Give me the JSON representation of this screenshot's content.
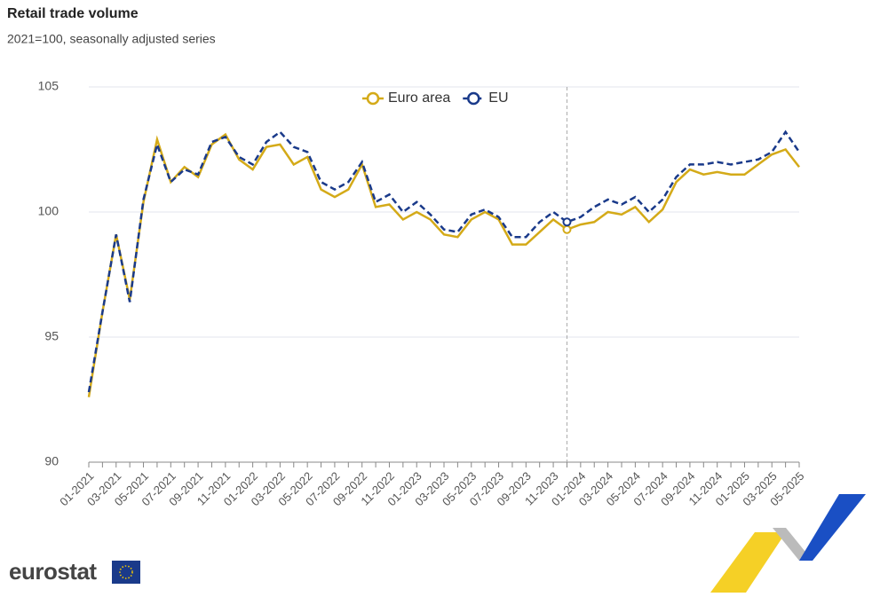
{
  "chart_data": {
    "type": "line",
    "title": "Retail trade volume",
    "subtitle": "2021=100, seasonally adjusted series",
    "source": "eurostat",
    "categories": [
      "01-2021",
      null,
      "03-2021",
      null,
      "05-2021",
      null,
      "07-2021",
      null,
      "09-2021",
      null,
      "11-2021",
      null,
      "01-2022",
      null,
      "03-2022",
      null,
      "05-2022",
      null,
      "07-2022",
      null,
      "09-2022",
      null,
      "11-2022",
      null,
      "01-2023",
      null,
      "03-2023",
      null,
      "05-2023",
      null,
      "07-2023",
      null,
      "09-2023",
      null,
      "11-2023",
      null,
      "01-2024",
      null,
      "03-2024",
      null,
      "05-2024",
      null,
      "07-2024",
      null,
      "09-2024",
      null,
      "11-2024",
      null,
      "01-2025",
      null,
      "03-2025",
      null,
      "05-2025"
    ],
    "series": [
      {
        "name": "Euro area",
        "color": "#d4aa18",
        "dashed": false,
        "values": [
          92.6,
          96.0,
          99.1,
          96.5,
          100.4,
          102.9,
          101.2,
          101.8,
          101.4,
          102.7,
          103.1,
          102.1,
          101.7,
          102.6,
          102.7,
          101.9,
          102.2,
          100.9,
          100.6,
          100.9,
          101.9,
          100.2,
          100.3,
          99.7,
          100.0,
          99.7,
          99.1,
          99.0,
          99.7,
          100.0,
          99.7,
          98.7,
          98.7,
          99.2,
          99.7,
          99.3,
          99.5,
          99.6,
          100.0,
          99.9,
          100.2,
          99.6,
          100.1,
          101.2,
          101.7,
          101.5,
          101.6,
          101.5,
          101.5,
          101.9,
          102.3,
          102.5,
          101.8
        ]
      },
      {
        "name": "EU",
        "color": "#1a3a8a",
        "dashed": true,
        "values": [
          92.8,
          96.0,
          99.1,
          96.4,
          100.5,
          102.7,
          101.2,
          101.7,
          101.5,
          102.8,
          103.0,
          102.2,
          101.9,
          102.8,
          103.2,
          102.6,
          102.4,
          101.2,
          100.9,
          101.2,
          102.0,
          100.4,
          100.7,
          100.0,
          100.4,
          99.9,
          99.3,
          99.2,
          99.9,
          100.1,
          99.8,
          99.0,
          99.0,
          99.6,
          100.0,
          99.6,
          99.8,
          100.2,
          100.5,
          100.3,
          100.6,
          100.0,
          100.5,
          101.4,
          101.9,
          101.9,
          102.0,
          101.9,
          102.0,
          102.1,
          102.4,
          103.2,
          102.4
        ]
      }
    ],
    "ylim": [
      90,
      105
    ],
    "yticks": [
      90,
      95,
      100,
      105
    ],
    "grid": true,
    "legend": "top",
    "highlight_index": 35
  }
}
